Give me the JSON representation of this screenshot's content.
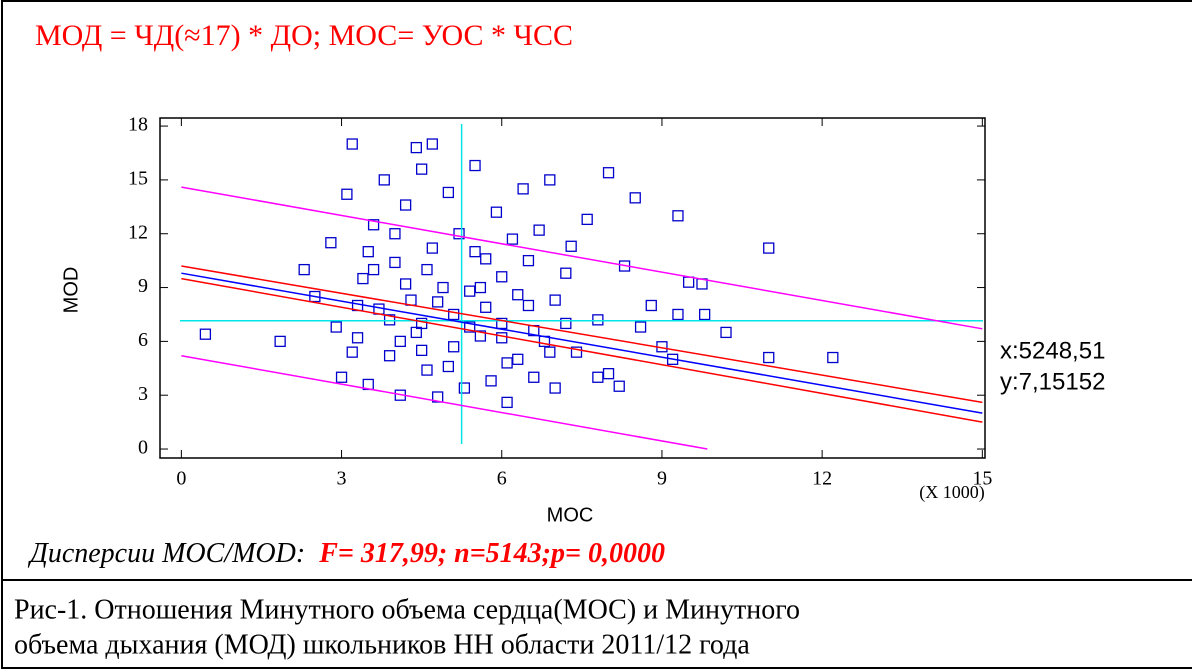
{
  "heading": "МОД = ЧД(≈17) * ДО; МОС= УОС * ЧСС",
  "chart_data": {
    "type": "scatter",
    "xlabel": "MOC",
    "ylabel": "MOD",
    "x_multiplier": "(X 1000)",
    "xlim": [
      -0.4,
      15.05
    ],
    "ylim": [
      -0.5,
      18.45
    ],
    "xticks": [
      0,
      3,
      6,
      9,
      12,
      15
    ],
    "yticks": [
      0,
      3,
      6,
      9,
      12,
      15,
      18
    ],
    "color": "#0000cc",
    "x": [
      0.45,
      1.85,
      2.3,
      11.0,
      12.2,
      11.0,
      10.2,
      9.8,
      9.5,
      9.75,
      9.3,
      8.5,
      8.0,
      3.2,
      4.7,
      4.4,
      9.2,
      9.0,
      9.3,
      2.5,
      2.8,
      3.0,
      3.1,
      3.3,
      3.4,
      3.5,
      3.6,
      3.7,
      3.8,
      3.9,
      4.0,
      4.1,
      4.2,
      4.3,
      4.4,
      4.5,
      4.6,
      4.7,
      4.8,
      4.9,
      5.0,
      5.1,
      5.2,
      5.3,
      5.4,
      5.5,
      5.6,
      5.7,
      5.8,
      5.9,
      6.0,
      6.1,
      6.2,
      6.3,
      6.4,
      6.5,
      6.6,
      6.7,
      6.8,
      6.9,
      7.0,
      7.2,
      7.4,
      7.6,
      7.8,
      8.0,
      8.3,
      8.6,
      3.3,
      3.6,
      3.9,
      4.2,
      4.5,
      4.8,
      5.1,
      5.4,
      5.7,
      6.0,
      6.3,
      6.6,
      6.9,
      7.2,
      3.5,
      4.0,
      4.5,
      5.0,
      5.5,
      6.0,
      6.5,
      7.0,
      4.1,
      4.6,
      5.6,
      6.1,
      7.8,
      8.2,
      2.9,
      3.2,
      7.3,
      8.8
    ],
    "values": [
      6.4,
      6.0,
      10.0,
      11.2,
      5.1,
      5.1,
      6.5,
      7.5,
      9.3,
      9.2,
      13.0,
      14.0,
      15.4,
      17.0,
      17.0,
      16.8,
      5.0,
      5.7,
      7.5,
      8.5,
      11.5,
      4.0,
      14.2,
      6.2,
      9.5,
      3.6,
      12.5,
      7.8,
      15.0,
      5.2,
      10.4,
      3.0,
      13.6,
      8.3,
      6.5,
      15.6,
      4.4,
      11.2,
      2.9,
      9.0,
      14.3,
      5.7,
      12.0,
      3.4,
      8.8,
      15.8,
      6.3,
      10.6,
      3.8,
      13.2,
      7.0,
      2.6,
      11.7,
      5.0,
      14.5,
      8.0,
      4.0,
      12.2,
      6.0,
      15.0,
      3.4,
      9.8,
      5.4,
      12.8,
      7.2,
      4.2,
      10.2,
      6.8,
      8.0,
      10.0,
      7.2,
      9.2,
      7.0,
      8.2,
      7.5,
      6.8,
      7.9,
      6.2,
      8.6,
      6.6,
      5.4,
      7.0,
      11.0,
      12.0,
      5.5,
      4.6,
      11.0,
      9.6,
      10.5,
      8.3,
      6.0,
      10.0,
      9.0,
      4.8,
      4.0,
      3.5,
      6.8,
      5.4,
      11.3,
      8.0
    ],
    "lines": [
      {
        "color": "#0000ff",
        "x": [
          0,
          15
        ],
        "values": [
          9.8,
          2.0
        ]
      },
      {
        "color": "#ff0000",
        "x": [
          0,
          15
        ],
        "values": [
          10.2,
          2.6
        ]
      },
      {
        "color": "#ff0000",
        "x": [
          0,
          15
        ],
        "values": [
          9.5,
          1.5
        ]
      },
      {
        "color": "#ff00ff",
        "x": [
          0,
          15
        ],
        "values": [
          14.6,
          6.7
        ]
      },
      {
        "color": "#ff00ff",
        "x": [
          0,
          9.85
        ],
        "values": [
          5.2,
          0
        ]
      }
    ],
    "cursor": {
      "x": 5.24851,
      "y": 7.15152,
      "color": "#00e5e5",
      "x_label": "x:5248,51",
      "y_label": "y:7,15152"
    }
  },
  "stats": {
    "label": "Дисперсии МОС/MOD:",
    "value": "F= 317,99; n=5143;p= 0,0000"
  },
  "caption": [
    "Рис-1. Отношения Минутного объема сердца(МОС) и Минутного",
    "объема  дыхания (МОД)  школьников НН области 2011/12 года"
  ]
}
